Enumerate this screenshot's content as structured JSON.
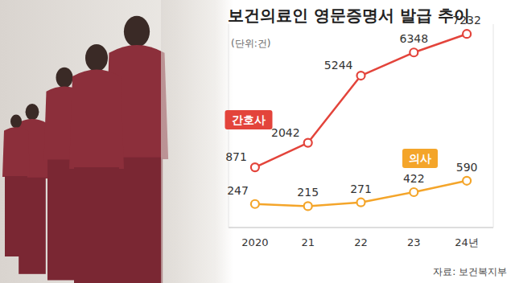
{
  "chart_data": {
    "type": "line",
    "title": "보건의료인 영문증명서 발급 추이",
    "subtitle": "(단위:건)",
    "source": "자료: 보건복지부",
    "categories": [
      "2020",
      "21",
      "22",
      "23",
      "24년"
    ],
    "series": [
      {
        "name": "간호사",
        "color": "#e3443b",
        "marker": "circle",
        "values": [
          871,
          2042,
          5244,
          6348,
          7232
        ]
      },
      {
        "name": "의사",
        "color": "#f4a52a",
        "marker": "circle",
        "axis": "y2",
        "values": [
          247,
          215,
          271,
          422,
          590
        ]
      }
    ],
    "ylim": [
      -2000,
      7700
    ],
    "y2lim": [
      -100,
      2900
    ],
    "data_labels": true,
    "tick_labels": "x",
    "grid": false
  }
}
